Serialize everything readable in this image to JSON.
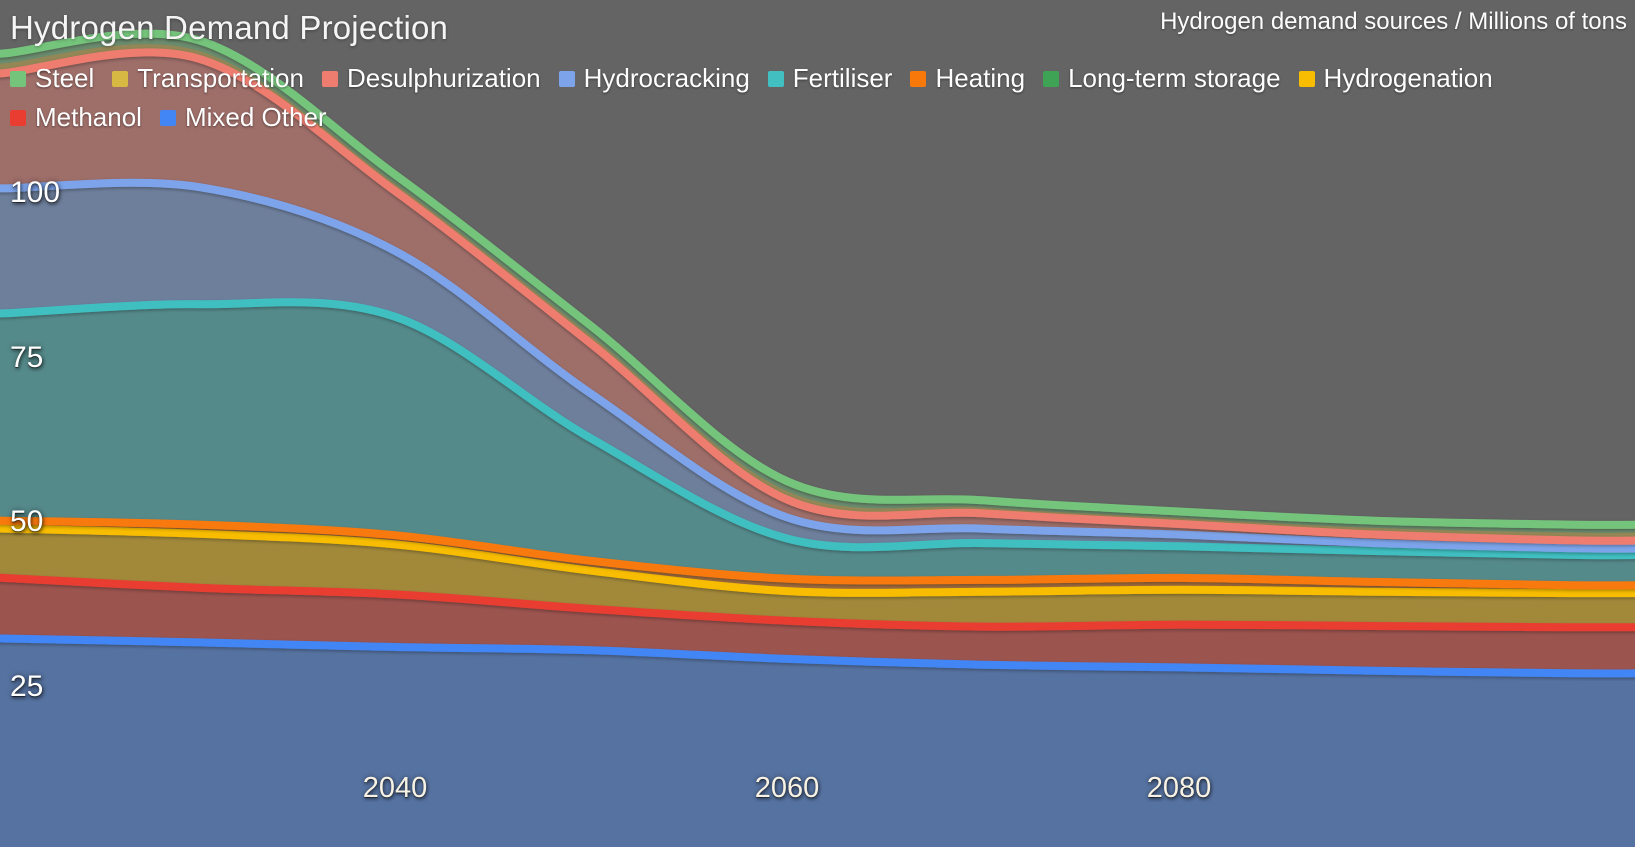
{
  "header": {
    "title": "Hydrogen Demand Projection",
    "subtitle": "Hydrogen demand sources / Millions of tons"
  },
  "colors": {
    "background": "#646464",
    "title_text": "#f5f5f5",
    "y_axis_text": "#ffffff",
    "x_axis_text": "#f7f2e4"
  },
  "chart_data": {
    "type": "area",
    "stacked": true,
    "title": "Hydrogen Demand Projection",
    "units_label": "Hydrogen demand sources / Millions of tons",
    "xlabel": "",
    "ylabel": "Millions of tons",
    "x": [
      2020,
      2030,
      2040,
      2050,
      2060,
      2070,
      2080,
      2090,
      2100
    ],
    "x_ticks": [
      2040,
      2060,
      2080
    ],
    "y_ticks": [
      25,
      50,
      75,
      100
    ],
    "y_axis_range": [
      0,
      129
    ],
    "grid": "off",
    "legend_position": "top",
    "fill_opacity": 0.42,
    "stroke_width": 8,
    "stack_order": "last legend series at bottom, first series (Steel) on top",
    "series": [
      {
        "name": "Steel",
        "color": "#74c47c",
        "line": true,
        "values": [
          1.5,
          1.6,
          1.4,
          1.5,
          1.5,
          1.1,
          1.0,
          1.1,
          1.2
        ]
      },
      {
        "name": "Transportation",
        "color": "#d6b842",
        "line": false,
        "values": [
          1.5,
          1.2,
          1.1,
          1.2,
          1.3,
          0.9,
          0.9,
          1.0,
          1.2
        ]
      },
      {
        "name": "Desulphurization",
        "color": "#ee7d70",
        "line": true,
        "values": [
          17.5,
          19.5,
          9.1,
          7.6,
          2.7,
          2.3,
          1.6,
          1.3,
          1.2
        ]
      },
      {
        "name": "Hydrocracking",
        "color": "#7da4ea",
        "line": true,
        "values": [
          19.0,
          17.8,
          10.0,
          6.8,
          3.2,
          2.2,
          1.8,
          1.2,
          1.0
        ]
      },
      {
        "name": "Fertiliser",
        "color": "#41bfc1",
        "line": true,
        "values": [
          31.5,
          33.5,
          33.2,
          18.6,
          6.1,
          5.6,
          4.8,
          4.7,
          4.6
        ]
      },
      {
        "name": "Heating",
        "color": "#f8790a",
        "line": true,
        "values": [
          1.0,
          1.2,
          1.2,
          1.3,
          1.6,
          1.6,
          1.6,
          1.3,
          1.0
        ]
      },
      {
        "name": "Long-term storage",
        "color": "#3fa355",
        "line": false,
        "values": [
          0.2,
          0.2,
          0.2,
          0.2,
          0.3,
          0.2,
          0.2,
          0.2,
          0.2
        ]
      },
      {
        "name": "Hydrogenation",
        "color": "#f8bd00",
        "line": true,
        "values": [
          7.5,
          8.2,
          7.6,
          5.8,
          4.5,
          5.3,
          5.3,
          5.2,
          5.2
        ]
      },
      {
        "name": "Methanol",
        "color": "#e93d32",
        "line": true,
        "values": [
          9.2,
          8.3,
          8.0,
          6.3,
          5.8,
          5.8,
          6.5,
          6.8,
          7.0
        ]
      },
      {
        "name": "Mixed Other",
        "color": "#4285f4",
        "line": true,
        "values": [
          32.3,
          31.7,
          31.0,
          30.5,
          29.2,
          28.3,
          27.9,
          27.4,
          27.0
        ]
      }
    ]
  }
}
